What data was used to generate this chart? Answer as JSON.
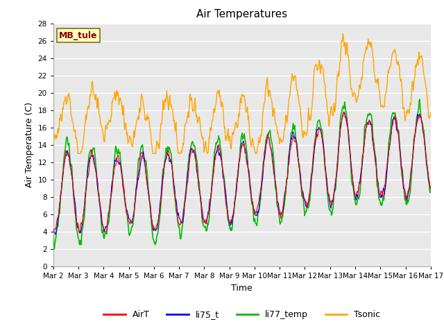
{
  "title": "Air Temperatures",
  "ylabel": "Air Temperature (C)",
  "xlabel": "Time",
  "annotation_text": "MB_tule",
  "annotation_color": "#8B0000",
  "annotation_bg": "#FFFFC0",
  "annotation_border": "#8B6914",
  "ylim": [
    0,
    28
  ],
  "yticks": [
    0,
    2,
    4,
    6,
    8,
    10,
    12,
    14,
    16,
    18,
    20,
    22,
    24,
    26,
    28
  ],
  "xtick_labels": [
    "Mar 2",
    "Mar 3",
    "Mar 4",
    "Mar 5",
    "Mar 6",
    "Mar 7",
    "Mar 8",
    "Mar 9",
    "Mar 10",
    "Mar 11",
    "Mar 12",
    "Mar 13",
    "Mar 14",
    "Mar 15",
    "Mar 16",
    "Mar 17"
  ],
  "line_colors": {
    "AirT": "#FF0000",
    "li75_t": "#0000FF",
    "li77_temp": "#00BB00",
    "Tsonic": "#FFA500"
  },
  "line_widths": {
    "AirT": 0.8,
    "li75_t": 0.8,
    "li77_temp": 1.2,
    "Tsonic": 1.0
  },
  "plot_bg_color": "#E8E8E8",
  "fig_bg_color": "#FFFFFF",
  "grid_color": "#FFFFFF",
  "title_fontsize": 11,
  "label_fontsize": 9,
  "tick_fontsize": 7.5,
  "legend_fontsize": 9
}
